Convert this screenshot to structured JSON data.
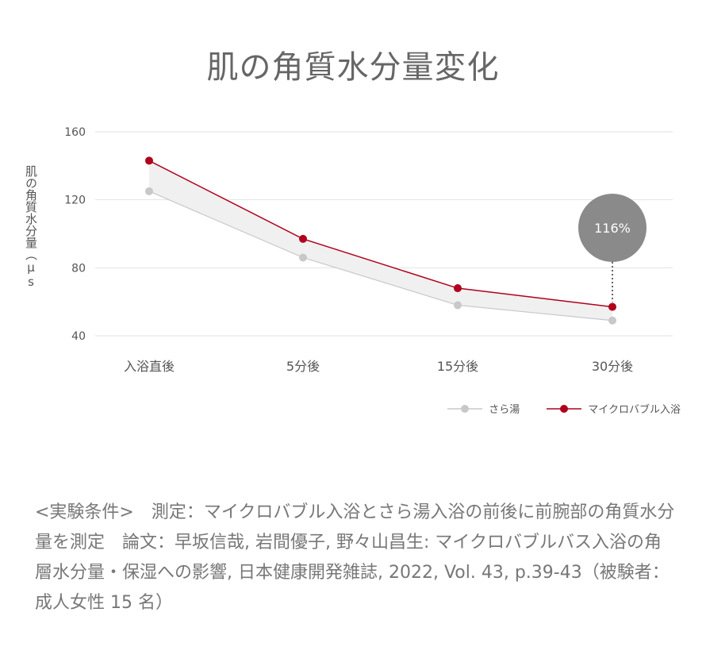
{
  "chart_data": {
    "type": "line",
    "title": "肌の角質水分量変化",
    "ylabel": "肌の角質水分量（μs",
    "xlabel": "",
    "categories": [
      "入浴直後",
      "5分後",
      "15分後",
      "30分後"
    ],
    "yticks": [
      40,
      80,
      120,
      160
    ],
    "ylim": [
      40,
      160
    ],
    "grid": true,
    "legend_position": "bottom-right",
    "series": [
      {
        "name": "さら湯",
        "values": [
          125,
          86,
          58,
          49
        ],
        "color": "#c8c8c8"
      },
      {
        "name": "マイクロバブル入浴",
        "values": [
          143,
          97,
          68,
          57
        ],
        "color": "#b0001e"
      }
    ],
    "annotation": {
      "text": "116%",
      "category_index": 3,
      "color": "#8a8a8a"
    },
    "band_color": "#f0f0f0"
  },
  "footnote": "<実験条件>　測定：マイクロバブル入浴とさら湯入浴の前後に前腕部の角質水分量を測定　論文：早坂信哉, 岩間優子, 野々山昌生: マイクロバブルバス入浴の角層水分量・保湿への影響, 日本健康開発雑誌, 2022, Vol. 43, p.39-43（被験者： 成人女性 15 名）"
}
